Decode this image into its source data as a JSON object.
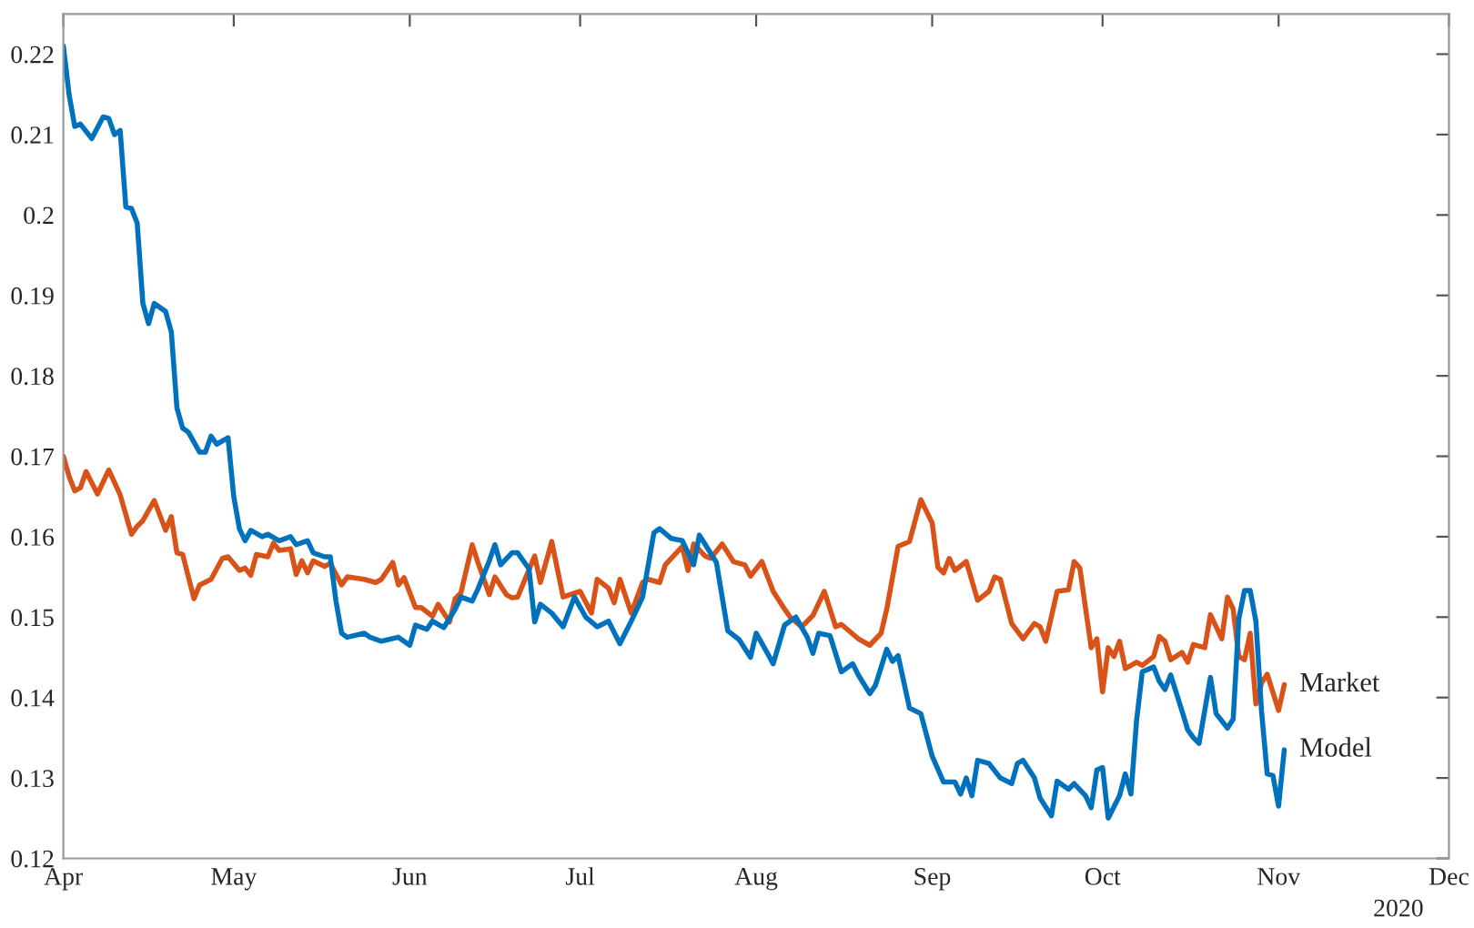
{
  "chart_data": {
    "type": "line",
    "xlim": [
      "2020-04-01",
      "2020-12-01"
    ],
    "xticks": [
      {
        "value": "2020-04-01",
        "label": "Apr"
      },
      {
        "value": "2020-05-01",
        "label": "May"
      },
      {
        "value": "2020-06-01",
        "label": "Jun"
      },
      {
        "value": "2020-07-01",
        "label": "Jul"
      },
      {
        "value": "2020-08-01",
        "label": "Aug"
      },
      {
        "value": "2020-09-01",
        "label": "Sep"
      },
      {
        "value": "2020-10-01",
        "label": "Oct"
      },
      {
        "value": "2020-11-01",
        "label": "Nov"
      },
      {
        "value": "2020-12-01",
        "label": "Dec"
      }
    ],
    "ylim": [
      0.12,
      0.225
    ],
    "yticks": [
      0.12,
      0.13,
      0.14,
      0.15,
      0.16,
      0.17,
      0.18,
      0.19,
      0.2,
      0.21,
      0.22
    ],
    "grid": false,
    "legend": false,
    "marker": "none",
    "line_style": "solid",
    "annotations": [
      "2020"
    ],
    "series": [
      {
        "name": "Market",
        "color": "#d95319",
        "x": [
          "2020-04-01",
          "2020-04-02",
          "2020-04-03",
          "2020-04-04",
          "2020-04-05",
          "2020-04-07",
          "2020-04-09",
          "2020-04-11",
          "2020-04-13",
          "2020-04-14",
          "2020-04-15",
          "2020-04-17",
          "2020-04-19",
          "2020-04-20",
          "2020-04-21",
          "2020-04-22",
          "2020-04-24",
          "2020-04-25",
          "2020-04-27",
          "2020-04-29",
          "2020-04-30",
          "2020-05-02",
          "2020-05-03",
          "2020-05-04",
          "2020-05-05",
          "2020-05-07",
          "2020-05-08",
          "2020-05-09",
          "2020-05-11",
          "2020-05-12",
          "2020-05-13",
          "2020-05-14",
          "2020-05-15",
          "2020-05-17",
          "2020-05-18",
          "2020-05-20",
          "2020-05-21",
          "2020-05-24",
          "2020-05-26",
          "2020-05-27",
          "2020-05-29",
          "2020-05-30",
          "2020-05-31",
          "2020-06-02",
          "2020-06-03",
          "2020-06-05",
          "2020-06-06",
          "2020-06-08",
          "2020-06-09",
          "2020-06-10",
          "2020-06-12",
          "2020-06-13",
          "2020-06-15",
          "2020-06-16",
          "2020-06-18",
          "2020-06-19",
          "2020-06-20",
          "2020-06-23",
          "2020-06-24",
          "2020-06-26",
          "2020-06-28",
          "2020-07-01",
          "2020-07-03",
          "2020-07-04",
          "2020-07-06",
          "2020-07-07",
          "2020-07-08",
          "2020-07-10",
          "2020-07-12",
          "2020-07-13",
          "2020-07-15",
          "2020-07-16",
          "2020-07-19",
          "2020-07-20",
          "2020-07-21",
          "2020-07-23",
          "2020-07-24",
          "2020-07-26",
          "2020-07-28",
          "2020-07-30",
          "2020-07-31",
          "2020-08-02",
          "2020-08-04",
          "2020-08-06",
          "2020-08-07",
          "2020-08-09",
          "2020-08-11",
          "2020-08-13",
          "2020-08-15",
          "2020-08-16",
          "2020-08-19",
          "2020-08-21",
          "2020-08-23",
          "2020-08-24",
          "2020-08-26",
          "2020-08-28",
          "2020-08-30",
          "2020-09-01",
          "2020-09-02",
          "2020-09-03",
          "2020-09-04",
          "2020-09-05",
          "2020-09-07",
          "2020-09-09",
          "2020-09-11",
          "2020-09-12",
          "2020-09-13",
          "2020-09-15",
          "2020-09-17",
          "2020-09-19",
          "2020-09-20",
          "2020-09-21",
          "2020-09-23",
          "2020-09-25",
          "2020-09-26",
          "2020-09-27",
          "2020-09-29",
          "2020-09-30",
          "2020-10-01",
          "2020-10-02",
          "2020-10-03",
          "2020-10-04",
          "2020-10-05",
          "2020-10-07",
          "2020-10-08",
          "2020-10-10",
          "2020-10-11",
          "2020-10-12",
          "2020-10-13",
          "2020-10-15",
          "2020-10-16",
          "2020-10-17",
          "2020-10-19",
          "2020-10-20",
          "2020-10-22",
          "2020-10-23",
          "2020-10-24",
          "2020-10-25",
          "2020-10-26",
          "2020-10-27",
          "2020-10-28",
          "2020-10-29",
          "2020-10-30",
          "2020-11-01",
          "2020-11-02"
        ],
        "values": [
          0.17,
          0.1675,
          0.1657,
          0.1661,
          0.1681,
          0.1653,
          0.1683,
          0.1652,
          0.1603,
          0.1613,
          0.162,
          0.1645,
          0.1608,
          0.1625,
          0.158,
          0.1578,
          0.1523,
          0.154,
          0.1547,
          0.1573,
          0.1575,
          0.1558,
          0.1561,
          0.1552,
          0.1578,
          0.1575,
          0.1592,
          0.1583,
          0.1585,
          0.1553,
          0.157,
          0.1555,
          0.157,
          0.1563,
          0.1567,
          0.154,
          0.155,
          0.1547,
          0.1543,
          0.1547,
          0.1568,
          0.154,
          0.1549,
          0.1512,
          0.1512,
          0.1501,
          0.1516,
          0.1494,
          0.1523,
          0.153,
          0.159,
          0.1568,
          0.1528,
          0.155,
          0.1528,
          0.1524,
          0.1525,
          0.1576,
          0.1543,
          0.1594,
          0.1525,
          0.1532,
          0.1505,
          0.1547,
          0.1536,
          0.1518,
          0.1547,
          0.1505,
          0.1543,
          0.1547,
          0.1543,
          0.1565,
          0.1588,
          0.1558,
          0.1591,
          0.1576,
          0.1573,
          0.1591,
          0.1569,
          0.1565,
          0.1551,
          0.1569,
          0.1532,
          0.151,
          0.15,
          0.1488,
          0.1502,
          0.1532,
          0.1488,
          0.1491,
          0.1473,
          0.1465,
          0.148,
          0.151,
          0.1588,
          0.1594,
          0.1646,
          0.1617,
          0.1562,
          0.1555,
          0.1573,
          0.1558,
          0.1569,
          0.1521,
          0.1532,
          0.155,
          0.1547,
          0.1492,
          0.1473,
          0.1492,
          0.1488,
          0.147,
          0.1532,
          0.1534,
          0.1569,
          0.1561,
          0.1462,
          0.1473,
          0.1407,
          0.1462,
          0.1451,
          0.147,
          0.1436,
          0.1444,
          0.144,
          0.1451,
          0.1476,
          0.147,
          0.1447,
          0.1456,
          0.1444,
          0.1466,
          0.1462,
          0.1503,
          0.1473,
          0.1525,
          0.151,
          0.1451,
          0.1447,
          0.148,
          0.1392,
          0.1418,
          0.1429,
          0.1384,
          0.1416
        ]
      },
      {
        "name": "Model",
        "color": "#0072bd",
        "x": [
          "2020-04-01",
          "2020-04-02",
          "2020-04-03",
          "2020-04-04",
          "2020-04-06",
          "2020-04-08",
          "2020-04-09",
          "2020-04-10",
          "2020-04-11",
          "2020-04-12",
          "2020-04-13",
          "2020-04-14",
          "2020-04-15",
          "2020-04-16",
          "2020-04-17",
          "2020-04-19",
          "2020-04-20",
          "2020-04-21",
          "2020-04-22",
          "2020-04-23",
          "2020-04-25",
          "2020-04-26",
          "2020-04-27",
          "2020-04-28",
          "2020-04-30",
          "2020-05-01",
          "2020-05-02",
          "2020-05-03",
          "2020-05-04",
          "2020-05-06",
          "2020-05-07",
          "2020-05-09",
          "2020-05-11",
          "2020-05-12",
          "2020-05-14",
          "2020-05-15",
          "2020-05-17",
          "2020-05-18",
          "2020-05-19",
          "2020-05-20",
          "2020-05-21",
          "2020-05-24",
          "2020-05-25",
          "2020-05-27",
          "2020-05-30",
          "2020-06-01",
          "2020-06-02",
          "2020-06-04",
          "2020-06-05",
          "2020-06-07",
          "2020-06-09",
          "2020-06-10",
          "2020-06-12",
          "2020-06-13",
          "2020-06-15",
          "2020-06-16",
          "2020-06-17",
          "2020-06-19",
          "2020-06-20",
          "2020-06-22",
          "2020-06-23",
          "2020-06-24",
          "2020-06-26",
          "2020-06-28",
          "2020-06-30",
          "2020-07-02",
          "2020-07-04",
          "2020-07-06",
          "2020-07-08",
          "2020-07-10",
          "2020-07-12",
          "2020-07-14",
          "2020-07-15",
          "2020-07-17",
          "2020-07-19",
          "2020-07-21",
          "2020-07-22",
          "2020-07-25",
          "2020-07-27",
          "2020-07-29",
          "2020-07-31",
          "2020-08-01",
          "2020-08-03",
          "2020-08-04",
          "2020-08-06",
          "2020-08-08",
          "2020-08-10",
          "2020-08-11",
          "2020-08-12",
          "2020-08-14",
          "2020-08-16",
          "2020-08-18",
          "2020-08-19",
          "2020-08-21",
          "2020-08-22",
          "2020-08-24",
          "2020-08-25",
          "2020-08-26",
          "2020-08-28",
          "2020-08-30",
          "2020-09-01",
          "2020-09-03",
          "2020-09-05",
          "2020-09-06",
          "2020-09-07",
          "2020-09-08",
          "2020-09-09",
          "2020-09-11",
          "2020-09-13",
          "2020-09-15",
          "2020-09-16",
          "2020-09-17",
          "2020-09-19",
          "2020-09-20",
          "2020-09-22",
          "2020-09-23",
          "2020-09-25",
          "2020-09-26",
          "2020-09-28",
          "2020-09-29",
          "2020-09-30",
          "2020-10-01",
          "2020-10-02",
          "2020-10-04",
          "2020-10-05",
          "2020-10-06",
          "2020-10-07",
          "2020-10-08",
          "2020-10-10",
          "2020-10-11",
          "2020-10-12",
          "2020-10-13",
          "2020-10-15",
          "2020-10-16",
          "2020-10-17",
          "2020-10-18",
          "2020-10-20",
          "2020-10-21",
          "2020-10-23",
          "2020-10-24",
          "2020-10-25",
          "2020-10-26",
          "2020-10-27",
          "2020-10-28",
          "2020-10-29",
          "2020-10-30",
          "2020-10-31",
          "2020-11-01",
          "2020-11-02"
        ],
        "values": [
          0.221,
          0.215,
          0.211,
          0.2113,
          0.2095,
          0.2122,
          0.212,
          0.21,
          0.2105,
          0.201,
          0.2008,
          0.199,
          0.189,
          0.1865,
          0.189,
          0.188,
          0.1855,
          0.176,
          0.1735,
          0.173,
          0.1705,
          0.1705,
          0.1725,
          0.1715,
          0.1723,
          0.165,
          0.161,
          0.1595,
          0.1608,
          0.16,
          0.1603,
          0.1595,
          0.16,
          0.159,
          0.1595,
          0.158,
          0.1575,
          0.1575,
          0.152,
          0.148,
          0.1475,
          0.148,
          0.1475,
          0.147,
          0.1475,
          0.1465,
          0.149,
          0.1485,
          0.1495,
          0.1487,
          0.151,
          0.1525,
          0.152,
          0.1535,
          0.157,
          0.159,
          0.1565,
          0.158,
          0.158,
          0.156,
          0.1494,
          0.1516,
          0.1505,
          0.1488,
          0.1525,
          0.15,
          0.1488,
          0.1495,
          0.1467,
          0.1495,
          0.1525,
          0.1605,
          0.161,
          0.1598,
          0.1595,
          0.1565,
          0.1602,
          0.1568,
          0.1483,
          0.1472,
          0.145,
          0.148,
          0.1455,
          0.1442,
          0.149,
          0.15,
          0.1475,
          0.1455,
          0.148,
          0.1477,
          0.1432,
          0.1442,
          0.1428,
          0.1405,
          0.1415,
          0.146,
          0.1445,
          0.1452,
          0.1387,
          0.138,
          0.1327,
          0.1295,
          0.1295,
          0.128,
          0.13,
          0.1278,
          0.1322,
          0.1318,
          0.13,
          0.1293,
          0.1318,
          0.1322,
          0.13,
          0.1275,
          0.1253,
          0.1296,
          0.1286,
          0.1293,
          0.1278,
          0.1263,
          0.131,
          0.1313,
          0.125,
          0.1278,
          0.1305,
          0.128,
          0.1372,
          0.1432,
          0.1438,
          0.142,
          0.141,
          0.1428,
          0.1383,
          0.136,
          0.135,
          0.1343,
          0.1425,
          0.138,
          0.1362,
          0.1373,
          0.1498,
          0.1533,
          0.1533,
          0.1495,
          0.1383,
          0.1305,
          0.1303,
          0.1265,
          0.1335
        ]
      }
    ]
  }
}
